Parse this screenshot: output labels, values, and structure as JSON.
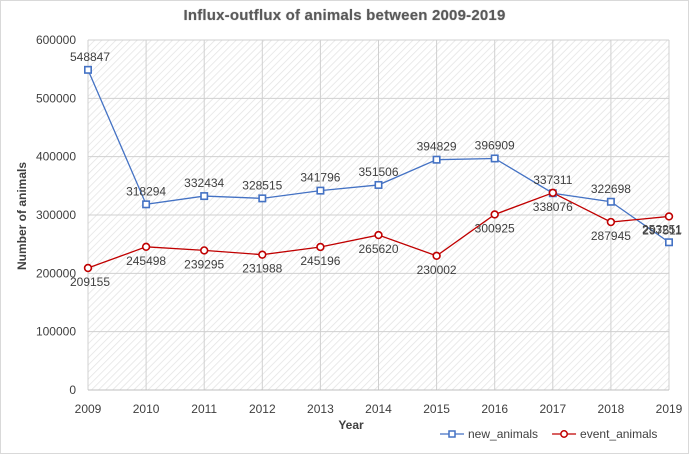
{
  "chart_data": {
    "type": "line",
    "title": "Influx-outflux of animals between 2009-2019",
    "xlabel": "Year",
    "ylabel": "Number of animals",
    "categories": [
      "2009",
      "2010",
      "2011",
      "2012",
      "2013",
      "2014",
      "2015",
      "2016",
      "2017",
      "2018",
      "2019"
    ],
    "ylim": [
      0,
      600000
    ],
    "yticks": [
      0,
      100000,
      200000,
      300000,
      400000,
      500000,
      600000
    ],
    "grid": true,
    "legend_position": "bottom-right",
    "series": [
      {
        "name": "new_animals",
        "color": "#4472c4",
        "marker": "square",
        "values": [
          548847,
          318294,
          332434,
          328515,
          341796,
          351506,
          394829,
          396909,
          337311,
          322698,
          253251
        ]
      },
      {
        "name": "event_animals",
        "color": "#c00000",
        "marker": "circle",
        "values": [
          209155,
          245498,
          239295,
          231988,
          245196,
          265620,
          230002,
          300925,
          338076,
          287945,
          297511
        ]
      }
    ]
  }
}
